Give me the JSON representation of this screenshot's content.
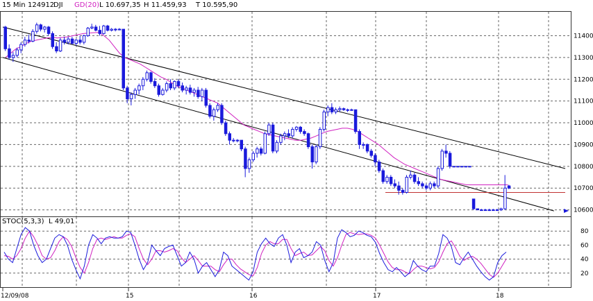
{
  "header": {
    "interval": "15 Min",
    "code": "124912",
    "symbol": "DJI",
    "ma_label": "GD(20)",
    "low_label": "L 10.697,35",
    "high_label": "H 11.459,93",
    "last_label": "T 10.595,90"
  },
  "stoch_header": {
    "name": "STOC(5,3,3)",
    "value_label": "L 49,01"
  },
  "x_labels": [
    "12/09/08",
    "15",
    "16",
    "17",
    "18"
  ],
  "chart_data": [
    {
      "type": "candlestick",
      "series_name": "DJI",
      "ylim": [
        10570,
        11510
      ],
      "yticks": [
        10600,
        10700,
        10800,
        10900,
        11000,
        11100,
        11200,
        11300,
        11400
      ],
      "ytick_labels": [
        "10600",
        "10700",
        "10800",
        "10900",
        "11000",
        "11100",
        "11200",
        "11300",
        "11400"
      ],
      "x_days": [
        "12/09/08",
        "15",
        "16",
        "17",
        "18"
      ],
      "bar_step_px": 4.5,
      "colors": {
        "up": "#ffffff",
        "down": "#1a1adc",
        "outline": "#1a1adc",
        "ma": "#d020c0",
        "channel": "#000000",
        "hline": "#c03030"
      },
      "candles": [
        [
          11440,
          11445,
          11330,
          11340
        ],
        [
          11340,
          11360,
          11290,
          11300
        ],
        [
          11300,
          11325,
          11280,
          11310
        ],
        [
          11310,
          11345,
          11300,
          11335
        ],
        [
          11335,
          11370,
          11320,
          11360
        ],
        [
          11360,
          11395,
          11350,
          11380
        ],
        [
          11380,
          11405,
          11365,
          11375
        ],
        [
          11375,
          11430,
          11370,
          11420
        ],
        [
          11420,
          11460,
          11410,
          11450
        ],
        [
          11450,
          11455,
          11420,
          11430
        ],
        [
          11430,
          11445,
          11415,
          11440
        ],
        [
          11440,
          11445,
          11400,
          11410
        ],
        [
          11410,
          11420,
          11340,
          11350
        ],
        [
          11350,
          11370,
          11320,
          11330
        ],
        [
          11330,
          11390,
          11325,
          11380
        ],
        [
          11380,
          11395,
          11360,
          11370
        ],
        [
          11370,
          11395,
          11360,
          11385
        ],
        [
          11385,
          11395,
          11360,
          11365
        ],
        [
          11365,
          11385,
          11355,
          11380
        ],
        [
          11380,
          11400,
          11360,
          11370
        ],
        [
          11370,
          11405,
          11360,
          11400
        ],
        [
          11400,
          11440,
          11395,
          11435
        ],
        [
          11435,
          11455,
          11430,
          11440
        ],
        [
          11440,
          11450,
          11420,
          11425
        ],
        [
          11425,
          11445,
          11400,
          11410
        ],
        [
          11410,
          11450,
          11405,
          11445
        ],
        [
          11445,
          11450,
          11420,
          11425
        ],
        [
          11425,
          11435,
          11420,
          11430
        ],
        [
          11430,
          11435,
          11420,
          11430
        ],
        [
          11430,
          11435,
          11425,
          11430
        ],
        [
          11430,
          11430,
          11150,
          11160
        ],
        [
          11160,
          11170,
          11090,
          11110
        ],
        [
          11110,
          11140,
          11080,
          11130
        ],
        [
          11130,
          11160,
          11110,
          11150
        ],
        [
          11150,
          11180,
          11130,
          11170
        ],
        [
          11170,
          11210,
          11150,
          11200
        ],
        [
          11200,
          11240,
          11190,
          11230
        ],
        [
          11230,
          11235,
          11180,
          11190
        ],
        [
          11190,
          11205,
          11160,
          11170
        ],
        [
          11170,
          11180,
          11120,
          11130
        ],
        [
          11130,
          11160,
          11125,
          11150
        ],
        [
          11150,
          11190,
          11140,
          11180
        ],
        [
          11180,
          11200,
          11150,
          11160
        ],
        [
          11160,
          11195,
          11150,
          11190
        ],
        [
          11190,
          11200,
          11160,
          11170
        ],
        [
          11170,
          11185,
          11140,
          11150
        ],
        [
          11150,
          11170,
          11130,
          11160
        ],
        [
          11160,
          11175,
          11130,
          11140
        ],
        [
          11140,
          11160,
          11120,
          11150
        ],
        [
          11150,
          11165,
          11110,
          11120
        ],
        [
          11120,
          11160,
          11100,
          11150
        ],
        [
          11150,
          11160,
          11070,
          11080
        ],
        [
          11080,
          11090,
          11020,
          11030
        ],
        [
          11030,
          11070,
          11010,
          11060
        ],
        [
          11060,
          11090,
          11050,
          11080
        ],
        [
          11080,
          11090,
          10990,
          11000
        ],
        [
          11000,
          11010,
          10940,
          10950
        ],
        [
          10950,
          10960,
          10900,
          10920
        ],
        [
          10920,
          10930,
          10910,
          10920
        ],
        [
          10920,
          10925,
          10910,
          10920
        ],
        [
          10920,
          10920,
          10870,
          10880
        ],
        [
          10880,
          10890,
          10750,
          10790
        ],
        [
          10790,
          10840,
          10770,
          10830
        ],
        [
          10830,
          10870,
          10820,
          10860
        ],
        [
          10860,
          10890,
          10840,
          10880
        ],
        [
          10880,
          10890,
          10850,
          10860
        ],
        [
          10860,
          10960,
          10855,
          10950
        ],
        [
          10950,
          11000,
          10940,
          10990
        ],
        [
          10990,
          11000,
          10860,
          10870
        ],
        [
          10870,
          10920,
          10860,
          10910
        ],
        [
          10910,
          10950,
          10900,
          10940
        ],
        [
          10940,
          10960,
          10920,
          10950
        ],
        [
          10950,
          10970,
          10930,
          10940
        ],
        [
          10940,
          10980,
          10930,
          10970
        ],
        [
          10970,
          10985,
          10960,
          10980
        ],
        [
          10980,
          10985,
          10950,
          10960
        ],
        [
          10960,
          10970,
          10940,
          10950
        ],
        [
          10950,
          10955,
          10880,
          10890
        ],
        [
          10890,
          10900,
          10790,
          10820
        ],
        [
          10820,
          10900,
          10810,
          10890
        ],
        [
          10890,
          10980,
          10880,
          10970
        ],
        [
          10970,
          11060,
          10960,
          11050
        ],
        [
          11050,
          11080,
          11030,
          11070
        ],
        [
          11070,
          11090,
          11040,
          11050
        ],
        [
          11050,
          11070,
          11040,
          11060
        ],
        [
          11060,
          11075,
          11050,
          11065
        ],
        [
          11065,
          11070,
          11055,
          11060
        ],
        [
          11060,
          11065,
          11050,
          11060
        ],
        [
          11060,
          11065,
          11055,
          11060
        ],
        [
          11060,
          11060,
          10950,
          10960
        ],
        [
          10960,
          10970,
          10880,
          10900
        ],
        [
          10900,
          10910,
          10880,
          10900
        ],
        [
          10900,
          10905,
          10860,
          10870
        ],
        [
          10870,
          10880,
          10840,
          10850
        ],
        [
          10850,
          10860,
          10800,
          10820
        ],
        [
          10820,
          10830,
          10770,
          10780
        ],
        [
          10780,
          10790,
          10720,
          10730
        ],
        [
          10730,
          10760,
          10720,
          10750
        ],
        [
          10750,
          10760,
          10710,
          10720
        ],
        [
          10720,
          10740,
          10700,
          10710
        ],
        [
          10710,
          10730,
          10670,
          10690
        ],
        [
          10690,
          10700,
          10670,
          10680
        ],
        [
          10680,
          10760,
          10675,
          10750
        ],
        [
          10750,
          10780,
          10740,
          10760
        ],
        [
          10760,
          10770,
          10720,
          10730
        ],
        [
          10730,
          10750,
          10710,
          10720
        ],
        [
          10720,
          10730,
          10700,
          10710
        ],
        [
          10710,
          10720,
          10690,
          10700
        ],
        [
          10700,
          10730,
          10690,
          10720
        ],
        [
          10720,
          10730,
          10700,
          10710
        ],
        [
          10710,
          10800,
          10700,
          10790
        ],
        [
          10790,
          10880,
          10780,
          10870
        ],
        [
          10870,
          10900,
          10840,
          10860
        ],
        [
          10860,
          10870,
          10790,
          10800
        ],
        [
          10800,
          10800,
          10800,
          10800
        ],
        [
          10800,
          10800,
          10800,
          10800
        ],
        [
          10800,
          10800,
          10800,
          10800
        ],
        [
          10800,
          10800,
          10800,
          10800
        ],
        [
          10800,
          10800,
          10800,
          10800
        ],
        [
          10650,
          10650,
          10600,
          10605
        ],
        [
          10605,
          10605,
          10600,
          10600
        ],
        [
          10600,
          10605,
          10600,
          10600
        ],
        [
          10600,
          10605,
          10600,
          10600
        ],
        [
          10600,
          10605,
          10595,
          10600
        ],
        [
          10600,
          10605,
          10600,
          10600
        ],
        [
          10600,
          10605,
          10600,
          10600
        ],
        [
          10600,
          10610,
          10595,
          10605
        ],
        [
          10605,
          10760,
          10600,
          10700
        ],
        [
          10710,
          10715,
          10695,
          10700
        ]
      ],
      "ma20": [
        11300,
        11320,
        11340,
        11350,
        11365,
        11375,
        11380,
        11385,
        11390,
        11392,
        11390,
        11392,
        11395,
        11400,
        11405,
        11410,
        11412,
        11414,
        11415,
        11400,
        11380,
        11350,
        11320,
        11300,
        11290,
        11280,
        11270,
        11255,
        11240,
        11225,
        11210,
        11200,
        11185,
        11170,
        11160,
        11150,
        11140,
        11130,
        11120,
        11110,
        11100,
        11090,
        11070,
        11050,
        11030,
        11010,
        10990,
        10980,
        10970,
        10960,
        10950,
        10945,
        10940,
        10935,
        10930,
        10925,
        10920,
        10920,
        10925,
        10930,
        10940,
        10950,
        10960,
        10965,
        10970,
        10975,
        10975,
        10970,
        10960,
        10945,
        10930,
        10915,
        10900,
        10880,
        10860,
        10840,
        10825,
        10810,
        10800,
        10790,
        10780,
        10770,
        10760,
        10750,
        10740,
        10735,
        10730,
        10725,
        10720,
        10715,
        10715,
        10715,
        10715,
        10715,
        10715,
        10715,
        10715,
        10715
      ],
      "hline": 10680,
      "channel_upper": [
        [
          0,
          11440
        ],
        [
          1.0,
          10790
        ]
      ],
      "channel_lower": [
        [
          0,
          11300
        ],
        [
          0.98,
          10595
        ]
      ]
    },
    {
      "type": "line",
      "series_name": "STOC(5,3,3)",
      "ylim": [
        0,
        100
      ],
      "yticks": [
        20,
        40,
        60,
        80
      ],
      "ytick_labels": [
        "20",
        "40",
        "60",
        "80"
      ],
      "colors": {
        "k": "#1a1adc",
        "d": "#d020c0"
      },
      "k": [
        50,
        40,
        35,
        55,
        75,
        85,
        80,
        60,
        45,
        35,
        40,
        55,
        70,
        75,
        72,
        60,
        40,
        25,
        12,
        30,
        60,
        75,
        70,
        62,
        70,
        72,
        70,
        70,
        72,
        80,
        78,
        60,
        40,
        25,
        35,
        60,
        52,
        45,
        55,
        58,
        60,
        45,
        30,
        35,
        50,
        40,
        20,
        30,
        35,
        25,
        15,
        25,
        50,
        45,
        30,
        25,
        20,
        15,
        10,
        22,
        50,
        62,
        70,
        62,
        58,
        70,
        75,
        60,
        35,
        50,
        55,
        42,
        45,
        50,
        65,
        60,
        38,
        22,
        35,
        70,
        82,
        78,
        72,
        74,
        80,
        78,
        74,
        72,
        64,
        48,
        35,
        25,
        22,
        28,
        22,
        15,
        20,
        38,
        30,
        25,
        22,
        30,
        30,
        48,
        75,
        70,
        58,
        35,
        32,
        42,
        50,
        40,
        30,
        22,
        15,
        10,
        15,
        35,
        45,
        50
      ],
      "d": [
        45,
        44,
        40,
        45,
        55,
        70,
        80,
        72,
        60,
        45,
        40,
        42,
        52,
        65,
        72,
        68,
        58,
        42,
        28,
        20,
        35,
        55,
        68,
        70,
        68,
        70,
        72,
        70,
        70,
        74,
        76,
        72,
        55,
        40,
        32,
        40,
        52,
        52,
        50,
        52,
        55,
        52,
        42,
        35,
        40,
        45,
        38,
        30,
        30,
        30,
        25,
        22,
        32,
        40,
        40,
        32,
        26,
        22,
        18,
        16,
        28,
        48,
        60,
        65,
        62,
        62,
        68,
        68,
        55,
        45,
        48,
        50,
        45,
        46,
        52,
        58,
        52,
        38,
        30,
        42,
        60,
        75,
        78,
        76,
        75,
        76,
        76,
        74,
        70,
        60,
        48,
        36,
        28,
        25,
        25,
        22,
        19,
        25,
        30,
        30,
        28,
        26,
        28,
        36,
        50,
        62,
        66,
        56,
        44,
        38,
        42,
        44,
        40,
        34,
        26,
        18,
        14,
        20,
        30,
        40
      ]
    }
  ]
}
